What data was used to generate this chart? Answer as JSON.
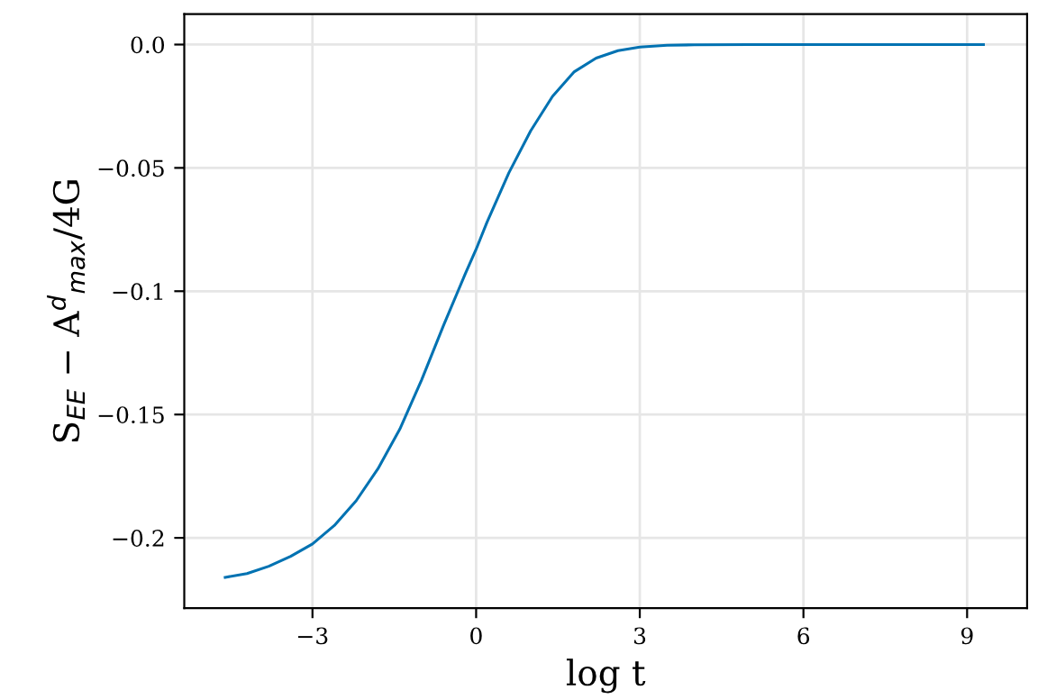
{
  "chart_data": {
    "type": "line",
    "xlabel": "log t",
    "ylabel": "S$_{EE}$ − A$^{d}$$_{max}$/4G",
    "series": [
      {
        "color": "#0072b2",
        "x": [
          -4.6,
          -4.2,
          -3.8,
          -3.4,
          -3.0,
          -2.6,
          -2.2,
          -1.8,
          -1.4,
          -1.0,
          -0.6,
          -0.2,
          0.0,
          0.2,
          0.6,
          1.0,
          1.4,
          1.8,
          2.2,
          2.6,
          3.0,
          3.5,
          4.0,
          5.0,
          6.0,
          7.0,
          8.0,
          9.3
        ],
        "values": [
          -0.216,
          -0.2145,
          -0.2115,
          -0.2075,
          -0.2025,
          -0.195,
          -0.185,
          -0.172,
          -0.156,
          -0.136,
          -0.114,
          -0.093,
          -0.083,
          -0.072,
          -0.052,
          -0.035,
          -0.021,
          -0.011,
          -0.0055,
          -0.0025,
          -0.001,
          -0.0003,
          -0.0001,
          0.0,
          0.0,
          0.0,
          0.0,
          0.0
        ]
      }
    ],
    "xlim": [
      -5.35,
      10.1
    ],
    "ylim": [
      -0.2285,
      0.0124
    ],
    "xticks": [
      {
        "value": -3,
        "label": "−3"
      },
      0,
      3,
      6,
      9
    ],
    "yticks": [
      {
        "value": -0.2,
        "label": "−0.2"
      },
      {
        "value": -0.15,
        "label": "−0.15"
      },
      {
        "value": -0.1,
        "label": "−0.1"
      },
      {
        "value": -0.05,
        "label": "−0.05"
      },
      {
        "value": 0.0,
        "label": "0.0"
      }
    ],
    "grid": true,
    "line_style": "solid",
    "marker": "none"
  }
}
